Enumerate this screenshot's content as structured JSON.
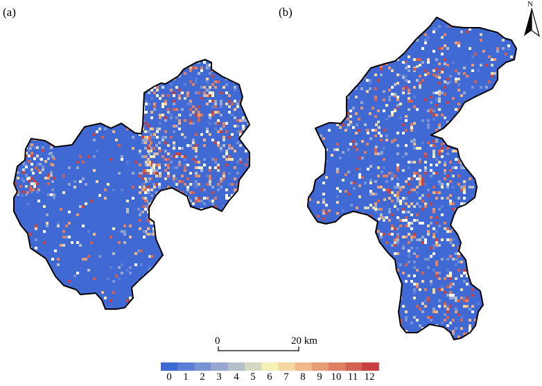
{
  "panels": {
    "a": {
      "label": "(a)"
    },
    "b": {
      "label": "(b)"
    }
  },
  "north_arrow": {
    "label": "N"
  },
  "scale_bar": {
    "start_label": "0",
    "end_label": "20 km"
  },
  "legend": {
    "classes": [
      {
        "label": "0",
        "color": "#4169d4"
      },
      {
        "label": "1",
        "color": "#5b7ed6"
      },
      {
        "label": "2",
        "color": "#7893d3"
      },
      {
        "label": "3",
        "color": "#97a8d0"
      },
      {
        "label": "4",
        "color": "#b3bfcb"
      },
      {
        "label": "5",
        "color": "#d3d8c2"
      },
      {
        "label": "6",
        "color": "#f5f0b8"
      },
      {
        "label": "7",
        "color": "#f4d6a0"
      },
      {
        "label": "8",
        "color": "#efb98a"
      },
      {
        "label": "9",
        "color": "#e79d78"
      },
      {
        "label": "10",
        "color": "#de8066"
      },
      {
        "label": "11",
        "color": "#d26253"
      },
      {
        "label": "12",
        "color": "#c84242"
      }
    ]
  }
}
